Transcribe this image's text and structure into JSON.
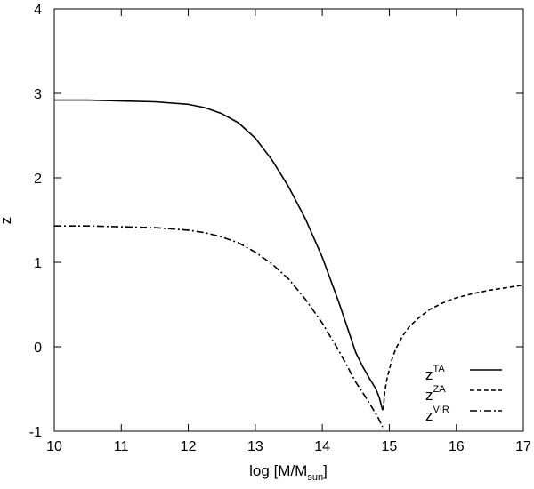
{
  "chart_data": {
    "type": "line",
    "title": "",
    "xlabel": "log [M/M",
    "xlabel_sub": "sun",
    "xlabel_end": "]",
    "ylabel": "z",
    "xlim": [
      10,
      17
    ],
    "ylim": [
      -1,
      4
    ],
    "xticks": [
      10,
      11,
      12,
      13,
      14,
      15,
      16,
      17
    ],
    "yticks": [
      -1,
      0,
      1,
      2,
      3,
      4
    ],
    "grid": false,
    "legend_position": "bottom-right",
    "series": [
      {
        "name": "z",
        "name_sup": "TA",
        "style": "solid",
        "x": [
          10.0,
          10.5,
          11.0,
          11.5,
          12.0,
          12.25,
          12.5,
          12.75,
          13.0,
          13.25,
          13.5,
          13.75,
          14.0,
          14.25,
          14.5,
          14.6,
          14.7,
          14.8,
          14.85,
          14.9
        ],
        "y": [
          2.92,
          2.92,
          2.91,
          2.9,
          2.87,
          2.83,
          2.76,
          2.65,
          2.47,
          2.21,
          1.89,
          1.51,
          1.06,
          0.52,
          -0.07,
          -0.23,
          -0.37,
          -0.5,
          -0.6,
          -0.75
        ]
      },
      {
        "name": "z",
        "name_sup": "ZA",
        "style": "dashed",
        "x": [
          14.91,
          14.93,
          14.96,
          15.0,
          15.05,
          15.1,
          15.2,
          15.3,
          15.45,
          15.6,
          15.8,
          16.0,
          16.25,
          16.5,
          16.75,
          17.0
        ],
        "y": [
          -0.75,
          -0.55,
          -0.4,
          -0.27,
          -0.12,
          -0.02,
          0.13,
          0.24,
          0.35,
          0.44,
          0.52,
          0.58,
          0.63,
          0.67,
          0.7,
          0.73
        ]
      },
      {
        "name": "z",
        "name_sup": "VIR",
        "style": "dashdot",
        "x": [
          10.0,
          10.5,
          11.0,
          11.5,
          12.0,
          12.25,
          12.5,
          12.75,
          13.0,
          13.25,
          13.5,
          13.75,
          14.0,
          14.25,
          14.5,
          14.65,
          14.75,
          14.82,
          14.87,
          14.9
        ],
        "y": [
          1.43,
          1.43,
          1.42,
          1.41,
          1.38,
          1.35,
          1.3,
          1.23,
          1.12,
          0.98,
          0.8,
          0.56,
          0.28,
          -0.05,
          -0.42,
          -0.6,
          -0.73,
          -0.82,
          -0.9,
          -0.95
        ]
      }
    ]
  }
}
